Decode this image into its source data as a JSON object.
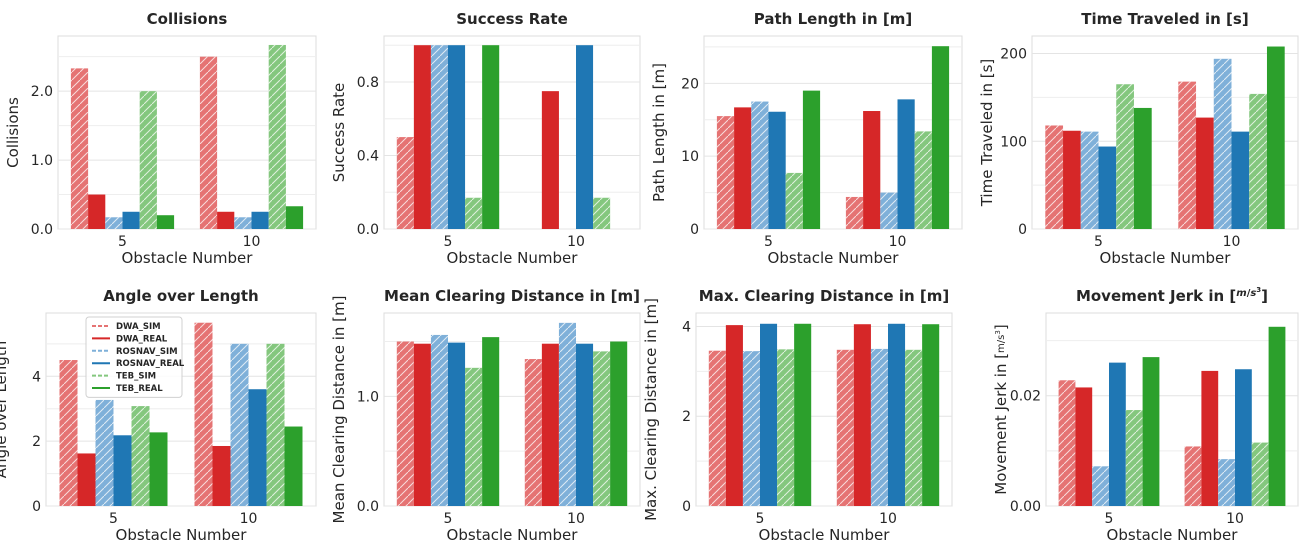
{
  "colors": {
    "DWA_SIM": "#e57373",
    "DWA_REAL": "#d62728",
    "ROSNAV_SIM": "#7fb0d9",
    "ROSNAV_REAL": "#1f77b4",
    "TEB_SIM": "#84c77e",
    "TEB_REAL": "#2ca02c"
  },
  "legend": {
    "placement": "top-left",
    "entries": [
      "DWA_SIM",
      "DWA_REAL",
      "ROSNAV_SIM",
      "ROSNAV_REAL",
      "TEB_SIM",
      "TEB_REAL"
    ]
  },
  "chart_data": [
    {
      "type": "bar",
      "title": "Collisions",
      "xlabel": "Obstacle Number",
      "ylabel": "Collisions",
      "categories": [
        "5",
        "10"
      ],
      "ylim": [
        0,
        2.8
      ],
      "yticks": [
        0,
        1,
        2
      ],
      "ytick_labels": [
        "0.0",
        "1.0",
        "2.0"
      ],
      "grid": true,
      "series": [
        {
          "name": "DWA_SIM",
          "values": [
            2.33,
            2.5
          ]
        },
        {
          "name": "DWA_REAL",
          "values": [
            0.5,
            0.25
          ]
        },
        {
          "name": "ROSNAV_SIM",
          "values": [
            0.17,
            0.17
          ]
        },
        {
          "name": "ROSNAV_REAL",
          "values": [
            0.25,
            0.25
          ]
        },
        {
          "name": "TEB_SIM",
          "values": [
            2.0,
            2.67
          ]
        },
        {
          "name": "TEB_REAL",
          "values": [
            0.2,
            0.33
          ]
        }
      ]
    },
    {
      "type": "bar",
      "title": "Success Rate",
      "xlabel": "Obstacle Number",
      "ylabel": "Success Rate",
      "categories": [
        "5",
        "10"
      ],
      "ylim": [
        0,
        1.05
      ],
      "yticks": [
        0,
        0.4,
        0.8
      ],
      "ytick_labels": [
        "0.0",
        "0.4",
        "0.8"
      ],
      "grid": true,
      "series": [
        {
          "name": "DWA_SIM",
          "values": [
            0.5,
            0.0
          ]
        },
        {
          "name": "DWA_REAL",
          "values": [
            1.0,
            0.75
          ]
        },
        {
          "name": "ROSNAV_SIM",
          "values": [
            1.0,
            0.0
          ]
        },
        {
          "name": "ROSNAV_REAL",
          "values": [
            1.0,
            1.0
          ]
        },
        {
          "name": "TEB_SIM",
          "values": [
            0.17,
            0.17
          ]
        },
        {
          "name": "TEB_REAL",
          "values": [
            1.0,
            0.0
          ]
        }
      ]
    },
    {
      "type": "bar",
      "title": "Path Length in [m]",
      "xlabel": "Obstacle Number",
      "ylabel": "Path Length in [m]",
      "categories": [
        "5",
        "10"
      ],
      "ylim": [
        0,
        26.5
      ],
      "yticks": [
        0,
        10,
        20
      ],
      "ytick_labels": [
        "0",
        "10",
        "20"
      ],
      "grid": true,
      "series": [
        {
          "name": "DWA_SIM",
          "values": [
            15.5,
            4.4
          ]
        },
        {
          "name": "DWA_REAL",
          "values": [
            16.7,
            16.2
          ]
        },
        {
          "name": "ROSNAV_SIM",
          "values": [
            17.5,
            5.0
          ]
        },
        {
          "name": "ROSNAV_REAL",
          "values": [
            16.1,
            17.8
          ]
        },
        {
          "name": "TEB_SIM",
          "values": [
            7.7,
            13.4
          ]
        },
        {
          "name": "TEB_REAL",
          "values": [
            19.0,
            25.1
          ]
        }
      ]
    },
    {
      "type": "bar",
      "title": "Time Traveled in [s]",
      "xlabel": "Obstacle Number",
      "ylabel": "Time Traveled in [s]",
      "categories": [
        "5",
        "10"
      ],
      "ylim": [
        0,
        220
      ],
      "yticks": [
        0,
        100,
        200
      ],
      "ytick_labels": [
        "0",
        "100",
        "200"
      ],
      "grid": true,
      "series": [
        {
          "name": "DWA_SIM",
          "values": [
            118,
            168
          ]
        },
        {
          "name": "DWA_REAL",
          "values": [
            112,
            127
          ]
        },
        {
          "name": "ROSNAV_SIM",
          "values": [
            111,
            194
          ]
        },
        {
          "name": "ROSNAV_REAL",
          "values": [
            94,
            111
          ]
        },
        {
          "name": "TEB_SIM",
          "values": [
            165,
            154
          ]
        },
        {
          "name": "TEB_REAL",
          "values": [
            138,
            208
          ]
        }
      ]
    },
    {
      "type": "bar",
      "title": "Angle over Length",
      "xlabel": "Obstacle Number",
      "ylabel": "Angle over Length",
      "categories": [
        "5",
        "10"
      ],
      "ylim": [
        0,
        5.95
      ],
      "yticks": [
        0,
        2,
        4
      ],
      "ytick_labels": [
        "0",
        "2",
        "4"
      ],
      "grid": true,
      "series": [
        {
          "name": "DWA_SIM",
          "values": [
            4.5,
            5.65
          ]
        },
        {
          "name": "DWA_REAL",
          "values": [
            1.62,
            1.85
          ]
        },
        {
          "name": "ROSNAV_SIM",
          "values": [
            3.27,
            5.0
          ]
        },
        {
          "name": "ROSNAV_REAL",
          "values": [
            2.18,
            3.6
          ]
        },
        {
          "name": "TEB_SIM",
          "values": [
            3.08,
            5.0
          ]
        },
        {
          "name": "TEB_REAL",
          "values": [
            2.27,
            2.45
          ]
        }
      ]
    },
    {
      "type": "bar",
      "title": "Mean Clearing Distance in [m]",
      "xlabel": "Obstacle Number",
      "ylabel": "Mean Clearing Distance in [m]",
      "categories": [
        "5",
        "10"
      ],
      "ylim": [
        0,
        1.76
      ],
      "yticks": [
        0,
        1
      ],
      "ytick_labels": [
        "0.0",
        "1.0"
      ],
      "grid": true,
      "series": [
        {
          "name": "DWA_SIM",
          "values": [
            1.5,
            1.34
          ]
        },
        {
          "name": "DWA_REAL",
          "values": [
            1.48,
            1.48
          ]
        },
        {
          "name": "ROSNAV_SIM",
          "values": [
            1.56,
            1.67
          ]
        },
        {
          "name": "ROSNAV_REAL",
          "values": [
            1.49,
            1.48
          ]
        },
        {
          "name": "TEB_SIM",
          "values": [
            1.26,
            1.41
          ]
        },
        {
          "name": "TEB_REAL",
          "values": [
            1.54,
            1.5
          ]
        }
      ]
    },
    {
      "type": "bar",
      "title": "Max. Clearing Distance in [m]",
      "xlabel": "Obstacle Number",
      "ylabel": "Max. Clearing Distance in [m]",
      "categories": [
        "5",
        "10"
      ],
      "ylim": [
        0,
        4.3
      ],
      "yticks": [
        0,
        2,
        4
      ],
      "ytick_labels": [
        "0",
        "2",
        "4"
      ],
      "grid": true,
      "series": [
        {
          "name": "DWA_SIM",
          "values": [
            3.46,
            3.48
          ]
        },
        {
          "name": "DWA_REAL",
          "values": [
            4.03,
            4.05
          ]
        },
        {
          "name": "ROSNAV_SIM",
          "values": [
            3.45,
            3.5
          ]
        },
        {
          "name": "ROSNAV_REAL",
          "values": [
            4.06,
            4.06
          ]
        },
        {
          "name": "TEB_SIM",
          "values": [
            3.49,
            3.48
          ]
        },
        {
          "name": "TEB_REAL",
          "values": [
            4.06,
            4.05
          ]
        }
      ]
    },
    {
      "type": "bar",
      "title": "Movement Jerk in [",
      "title_fraction": {
        "num": "m",
        "den": "s",
        "den_sup": "3"
      },
      "title_suffix": "]",
      "xlabel": "Obstacle Number",
      "ylabel": "Movement Jerk in [",
      "ylabel_suffix": "]",
      "categories": [
        "5",
        "10"
      ],
      "ylim": [
        0,
        0.035
      ],
      "yticks": [
        0,
        0.02
      ],
      "ytick_labels": [
        "0.00",
        "0.02"
      ],
      "grid": true,
      "series": [
        {
          "name": "DWA_SIM",
          "values": [
            0.0228,
            0.0108
          ]
        },
        {
          "name": "DWA_REAL",
          "values": [
            0.0215,
            0.0245
          ]
        },
        {
          "name": "ROSNAV_SIM",
          "values": [
            0.0072,
            0.0085
          ]
        },
        {
          "name": "ROSNAV_REAL",
          "values": [
            0.026,
            0.0248
          ]
        },
        {
          "name": "TEB_SIM",
          "values": [
            0.0174,
            0.0115
          ]
        },
        {
          "name": "TEB_REAL",
          "values": [
            0.027,
            0.0325
          ]
        }
      ]
    }
  ]
}
